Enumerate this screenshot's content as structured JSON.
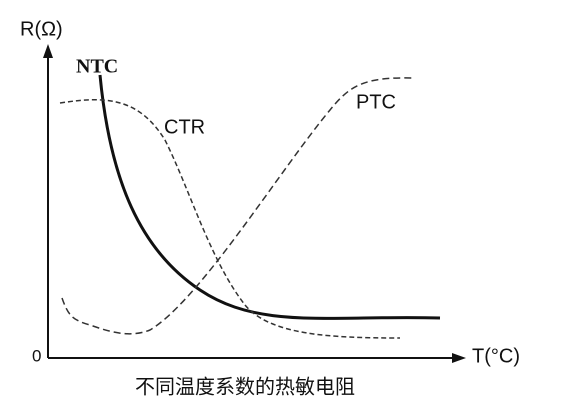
{
  "axes": {
    "y_label": "R(Ω)",
    "origin": "0",
    "x_label": "T(°C)"
  },
  "curves": {
    "ntc": "NTC",
    "ctr": "CTR",
    "ptc": "PTC"
  },
  "caption": "不同温度系数的热敏电阻"
}
